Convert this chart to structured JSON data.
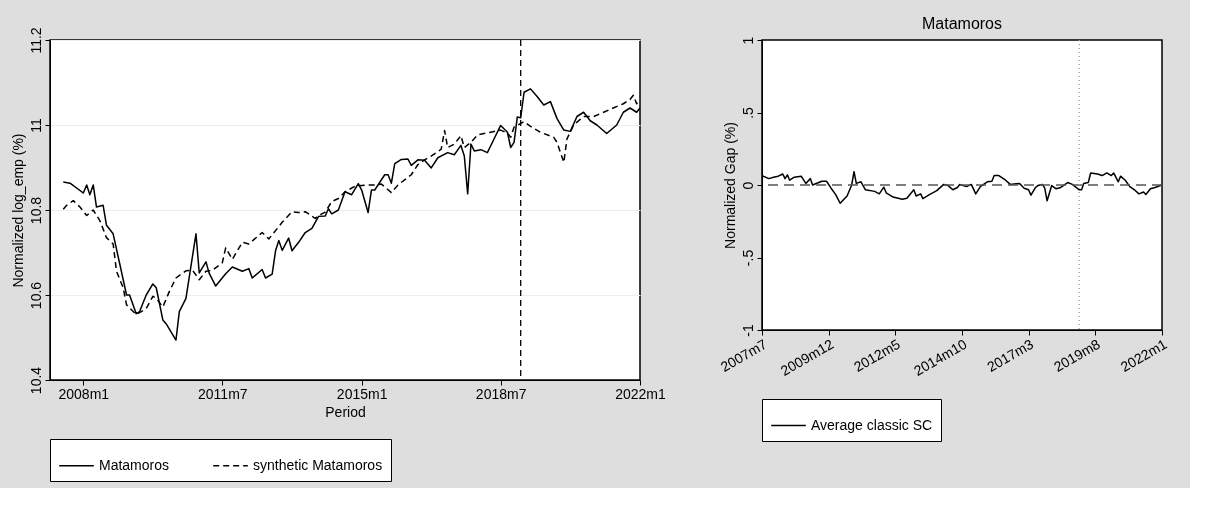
{
  "chart_data": [
    {
      "type": "line",
      "xlabel": "Period",
      "ylabel": "Normalized log_emp (%)",
      "xlim": [
        "2007-03",
        "2022-01"
      ],
      "ylim": [
        10.4,
        11.2
      ],
      "xticks": [
        {
          "value": "2008-01",
          "label": "2008m1"
        },
        {
          "value": "2011-07",
          "label": "2011m7"
        },
        {
          "value": "2015-01",
          "label": "2015m1"
        },
        {
          "value": "2018-07",
          "label": "2018m7"
        },
        {
          "value": "2022-01",
          "label": "2022m1"
        }
      ],
      "yticks": [
        10.4,
        10.6,
        10.8,
        11,
        11.2
      ],
      "grid": "y",
      "legend": "bottom",
      "ref_lines": [
        {
          "axis": "x",
          "value": "2019-01",
          "color": "#000000",
          "line_style": "dashed"
        }
      ],
      "series": [
        {
          "name": "Matamoros",
          "color": "#000000",
          "line_style": "solid",
          "x": [
            "2007-07",
            "2007-09",
            "2008-01",
            "2008-02",
            "2008-03",
            "2008-04",
            "2008-05",
            "2008-07",
            "2008-08",
            "2008-10",
            "2008-12",
            "2009-02",
            "2009-03",
            "2009-05",
            "2009-06",
            "2009-08",
            "2009-10",
            "2009-11",
            "2010-01",
            "2010-02",
            "2010-05",
            "2010-06",
            "2010-08",
            "2010-11",
            "2010-12",
            "2011-02",
            "2011-03",
            "2011-05",
            "2011-08",
            "2011-10",
            "2012-01",
            "2012-03",
            "2012-04",
            "2012-07",
            "2012-08",
            "2012-10",
            "2012-11",
            "2012-12",
            "2013-01",
            "2013-03",
            "2013-04",
            "2013-06",
            "2013-08",
            "2013-10",
            "2013-12",
            "2014-02",
            "2014-03",
            "2014-04",
            "2014-06",
            "2014-08",
            "2014-10",
            "2014-12",
            "2015-01",
            "2015-03",
            "2015-04",
            "2015-05",
            "2015-08",
            "2015-09",
            "2015-10",
            "2015-11",
            "2016-01",
            "2016-03",
            "2016-04",
            "2016-06",
            "2016-08",
            "2016-10",
            "2016-12",
            "2017-03",
            "2017-05",
            "2017-07",
            "2017-08",
            "2017-09",
            "2017-10",
            "2017-11",
            "2018-01",
            "2018-03",
            "2018-05",
            "2018-07",
            "2018-09",
            "2018-10",
            "2018-11",
            "2018-12",
            "2019-01",
            "2019-02",
            "2019-04",
            "2019-06",
            "2019-08",
            "2019-10",
            "2019-12",
            "2020-02",
            "2020-04",
            "2020-06",
            "2020-08",
            "2020-10",
            "2020-12",
            "2021-03",
            "2021-06",
            "2021-08",
            "2021-10",
            "2021-12",
            "2022-01"
          ],
          "values": [
            10.866,
            10.863,
            10.84,
            10.859,
            10.836,
            10.859,
            10.807,
            10.811,
            10.764,
            10.744,
            10.673,
            10.6,
            10.6,
            10.556,
            10.561,
            10.6,
            10.626,
            10.617,
            10.541,
            10.532,
            10.494,
            10.561,
            10.592,
            10.744,
            10.652,
            10.678,
            10.652,
            10.621,
            10.65,
            10.666,
            10.656,
            10.662,
            10.64,
            10.66,
            10.64,
            10.649,
            10.704,
            10.728,
            10.705,
            10.734,
            10.704,
            10.724,
            10.747,
            10.757,
            10.785,
            10.786,
            10.803,
            10.791,
            10.8,
            10.843,
            10.836,
            10.862,
            10.847,
            10.794,
            10.847,
            10.847,
            10.883,
            10.883,
            10.863,
            10.909,
            10.919,
            10.92,
            10.905,
            10.918,
            10.917,
            10.899,
            10.923,
            10.935,
            10.93,
            10.952,
            10.927,
            10.838,
            10.955,
            10.939,
            10.942,
            10.935,
            10.967,
            10.999,
            10.983,
            10.947,
            10.959,
            11.019,
            11.017,
            11.077,
            11.085,
            11.067,
            11.047,
            11.055,
            11.015,
            10.988,
            10.985,
            11.02,
            11.03,
            11.01,
            11.0,
            10.98,
            11.0,
            11.03,
            11.04,
            11.03,
            11.04
          ]
        },
        {
          "name": "synthetic Matamoros",
          "color": "#000000",
          "line_style": "dashed",
          "x": [
            "2007-07",
            "2007-08",
            "2007-10",
            "2007-12",
            "2008-02",
            "2008-04",
            "2008-06",
            "2008-08",
            "2008-10",
            "2008-11",
            "2009-01",
            "2009-02",
            "2009-05",
            "2009-08",
            "2009-10",
            "2009-11",
            "2010-01",
            "2010-03",
            "2010-05",
            "2010-08",
            "2010-10",
            "2010-12",
            "2011-02",
            "2011-04",
            "2011-07",
            "2011-08",
            "2011-10",
            "2012-01",
            "2012-03",
            "2012-07",
            "2012-09",
            "2013-01",
            "2013-04",
            "2013-06",
            "2013-08",
            "2013-11",
            "2013-12",
            "2014-02",
            "2014-04",
            "2014-06",
            "2014-08",
            "2014-11",
            "2015-03",
            "2015-05",
            "2015-07",
            "2015-10",
            "2015-12",
            "2016-04",
            "2016-06",
            "2016-08",
            "2016-10",
            "2017-01",
            "2017-02",
            "2017-03",
            "2017-05",
            "2017-07",
            "2017-08",
            "2017-10",
            "2017-12",
            "2018-04",
            "2018-07",
            "2018-09",
            "2018-10",
            "2018-11",
            "2019-02",
            "2019-04",
            "2019-07",
            "2019-11",
            "2019-12",
            "2020-02",
            "2020-03",
            "2020-05",
            "2020-08",
            "2020-11",
            "2021-02",
            "2021-05",
            "2021-08",
            "2021-10",
            "2021-11",
            "2021-12",
            "2022-01"
          ],
          "values": [
            10.802,
            10.811,
            10.822,
            10.807,
            10.787,
            10.8,
            10.775,
            10.735,
            10.72,
            10.656,
            10.617,
            10.577,
            10.554,
            10.568,
            10.597,
            10.592,
            10.572,
            10.608,
            10.64,
            10.657,
            10.658,
            10.636,
            10.656,
            10.658,
            10.676,
            10.711,
            10.684,
            10.724,
            10.72,
            10.747,
            10.732,
            10.771,
            10.796,
            10.794,
            10.796,
            10.78,
            10.787,
            10.795,
            10.82,
            10.827,
            10.843,
            10.856,
            10.859,
            10.859,
            10.861,
            10.841,
            10.859,
            10.883,
            10.907,
            10.918,
            10.927,
            10.943,
            10.987,
            10.947,
            10.955,
            10.975,
            10.947,
            10.959,
            10.977,
            10.983,
            10.988,
            10.981,
            10.971,
            10.995,
            11.008,
            10.997,
            10.983,
            10.971,
            10.959,
            10.912,
            10.967,
            11.0,
            11.02,
            11.02,
            11.03,
            11.04,
            11.05,
            11.06,
            11.07,
            11.05,
            11.06
          ]
        }
      ]
    },
    {
      "type": "line",
      "title": "Matamoros",
      "ylabel": "Normalized Gap (%)",
      "xlim": [
        "2007-07",
        "2022-01"
      ],
      "ylim": [
        -1,
        1
      ],
      "xticks": [
        {
          "value": "2007-07",
          "label": "2007m7"
        },
        {
          "value": "2009-12",
          "label": "2009m12"
        },
        {
          "value": "2012-05",
          "label": "2012m5"
        },
        {
          "value": "2014-10",
          "label": "2014m10"
        },
        {
          "value": "2017-03",
          "label": "2017m3"
        },
        {
          "value": "2019-08",
          "label": "2019m8"
        },
        {
          "value": "2022-01",
          "label": "2022m1"
        }
      ],
      "yticks": [
        -1,
        {
          "value": -0.5,
          "label": "-.5"
        },
        0,
        {
          "value": 0.5,
          "label": ".5"
        },
        1
      ],
      "grid": false,
      "legend": "bottom",
      "ref_lines": [
        {
          "axis": "y",
          "value": 0,
          "color": "#555555",
          "line_style": "dashed"
        },
        {
          "axis": "x",
          "value": "2019-01",
          "color": "#999999",
          "line_style": "dotted"
        }
      ],
      "series": [
        {
          "name": "Average classic SC",
          "color": "#000000",
          "line_style": "solid",
          "x": [
            "2007-07",
            "2007-10",
            "2007-12",
            "2008-02",
            "2008-04",
            "2008-05",
            "2008-06",
            "2008-07",
            "2008-09",
            "2008-12",
            "2009-02",
            "2009-04",
            "2009-05",
            "2009-09",
            "2009-11",
            "2010-01",
            "2010-03",
            "2010-05",
            "2010-08",
            "2010-10",
            "2010-11",
            "2010-12",
            "2011-02",
            "2011-04",
            "2011-08",
            "2011-10",
            "2011-12",
            "2012-01",
            "2012-04",
            "2012-08",
            "2012-10",
            "2013-01",
            "2013-02",
            "2013-04",
            "2013-05",
            "2013-08",
            "2013-11",
            "2014-02",
            "2014-04",
            "2014-06",
            "2014-08",
            "2014-09",
            "2014-12",
            "2015-02",
            "2015-04",
            "2015-06",
            "2015-09",
            "2015-11",
            "2015-12",
            "2016-02",
            "2016-05",
            "2016-07",
            "2016-11",
            "2017-01",
            "2017-03",
            "2017-04",
            "2017-06",
            "2017-07",
            "2017-09",
            "2017-10",
            "2017-11",
            "2018-01",
            "2018-03",
            "2018-05",
            "2018-08",
            "2018-10",
            "2019-01",
            "2019-02",
            "2019-03",
            "2019-05",
            "2019-06",
            "2019-09",
            "2019-11",
            "2020-01",
            "2020-03",
            "2020-04",
            "2020-06",
            "2020-07",
            "2020-09",
            "2020-11",
            "2021-01",
            "2021-03",
            "2021-05",
            "2021-06",
            "2021-08",
            "2021-10",
            "2022-01"
          ],
          "values": [
            0.065,
            0.044,
            0.054,
            0.061,
            0.076,
            0.044,
            0.07,
            0.033,
            0.054,
            0.061,
            0.011,
            0.044,
            0.0,
            0.026,
            0.026,
            -0.022,
            -0.065,
            -0.126,
            -0.076,
            0.0,
            0.092,
            0.011,
            0.022,
            -0.033,
            -0.044,
            -0.061,
            -0.015,
            -0.054,
            -0.083,
            -0.098,
            -0.092,
            -0.033,
            -0.076,
            -0.061,
            -0.094,
            -0.065,
            -0.039,
            0.004,
            -0.004,
            -0.033,
            -0.017,
            0.004,
            -0.011,
            0.004,
            -0.061,
            -0.011,
            0.022,
            0.026,
            0.065,
            0.065,
            0.033,
            0.004,
            0.011,
            -0.022,
            -0.033,
            -0.07,
            -0.017,
            -0.004,
            0.004,
            -0.022,
            -0.109,
            -0.004,
            -0.026,
            -0.017,
            0.017,
            0.004,
            -0.033,
            -0.033,
            0.011,
            0.017,
            0.083,
            0.076,
            0.065,
            0.083,
            0.065,
            0.083,
            0.022,
            0.061,
            0.033,
            -0.011,
            -0.033,
            -0.061,
            -0.048,
            -0.065,
            -0.026,
            -0.017,
            0.0
          ]
        }
      ]
    }
  ]
}
